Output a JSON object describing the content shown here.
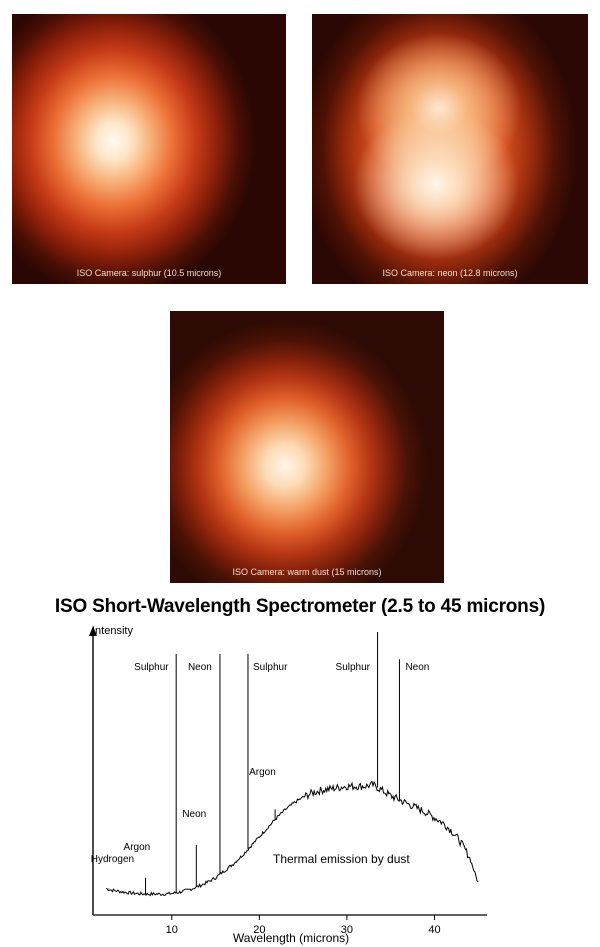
{
  "panels": [
    {
      "caption": "ISO Camera: sulphur (10.5 microns)"
    },
    {
      "caption": "ISO Camera: neon (12.8 microns)"
    },
    {
      "caption": "ISO Camera: warm dust (15 microns)"
    }
  ],
  "colors": {
    "glow_core": "#fff6ea",
    "glow_mid": "#ec6f36",
    "glow_edge": "#2a0703"
  },
  "chart_data": {
    "type": "line",
    "title": "ISO Short-Wavelength Spectrometer (2.5 to 45 microns)",
    "xlabel": "Wavelength (microns)",
    "ylabel": "Intensity",
    "xlim": [
      1,
      46
    ],
    "ylim": [
      0,
      100
    ],
    "x_ticks": [
      10,
      20,
      30,
      40
    ],
    "grid": false,
    "series": [
      {
        "values": [
          [
            2.5,
            6
          ],
          [
            3,
            5.5
          ],
          [
            4,
            5
          ],
          [
            5,
            4.5
          ],
          [
            6,
            4.2
          ],
          [
            7,
            4
          ],
          [
            8,
            4
          ],
          [
            9,
            4
          ],
          [
            10,
            4.2
          ],
          [
            11,
            4.8
          ],
          [
            12,
            5.6
          ],
          [
            13,
            6.8
          ],
          [
            14,
            8.2
          ],
          [
            15,
            10
          ],
          [
            16,
            12.5
          ],
          [
            17,
            15
          ],
          [
            18,
            18
          ],
          [
            19,
            21.5
          ],
          [
            20,
            25
          ],
          [
            21,
            28.5
          ],
          [
            22,
            32
          ],
          [
            23,
            35
          ],
          [
            24,
            37.5
          ],
          [
            25,
            39.5
          ],
          [
            26,
            41
          ],
          [
            27,
            42
          ],
          [
            28,
            42.5
          ],
          [
            29,
            43
          ],
          [
            30,
            43.5
          ],
          [
            31,
            43.5
          ],
          [
            32,
            43.5
          ],
          [
            33,
            44
          ],
          [
            34,
            42
          ],
          [
            35,
            40
          ],
          [
            36,
            38.5
          ],
          [
            37,
            37
          ],
          [
            38,
            35.5
          ],
          [
            39,
            34
          ],
          [
            40,
            32
          ],
          [
            41,
            30
          ],
          [
            42,
            27
          ],
          [
            43,
            23
          ],
          [
            44,
            17.5
          ],
          [
            45,
            8
          ]
        ]
      }
    ],
    "annotations": [
      {
        "label": "Hydrogen",
        "x": 2.8,
        "peak": 6
      },
      {
        "label": "Argon",
        "x": 7.0,
        "peak": 10
      },
      {
        "label": "Neon",
        "x": 12.8,
        "peak": 22
      },
      {
        "label": "Sulphur",
        "x": 10.5,
        "peak": 92
      },
      {
        "label": "Neon",
        "x": 15.5,
        "peak": 92
      },
      {
        "label": "Sulphur",
        "x": 18.7,
        "peak": 92
      },
      {
        "label": "Argon",
        "x": 21.8,
        "peak": 35
      },
      {
        "label": "Sulphur",
        "x": 33.5,
        "peak": 100
      },
      {
        "label": "Neon",
        "x": 36.0,
        "peak": 90
      },
      {
        "label": "Thermal emission by dust"
      }
    ]
  }
}
